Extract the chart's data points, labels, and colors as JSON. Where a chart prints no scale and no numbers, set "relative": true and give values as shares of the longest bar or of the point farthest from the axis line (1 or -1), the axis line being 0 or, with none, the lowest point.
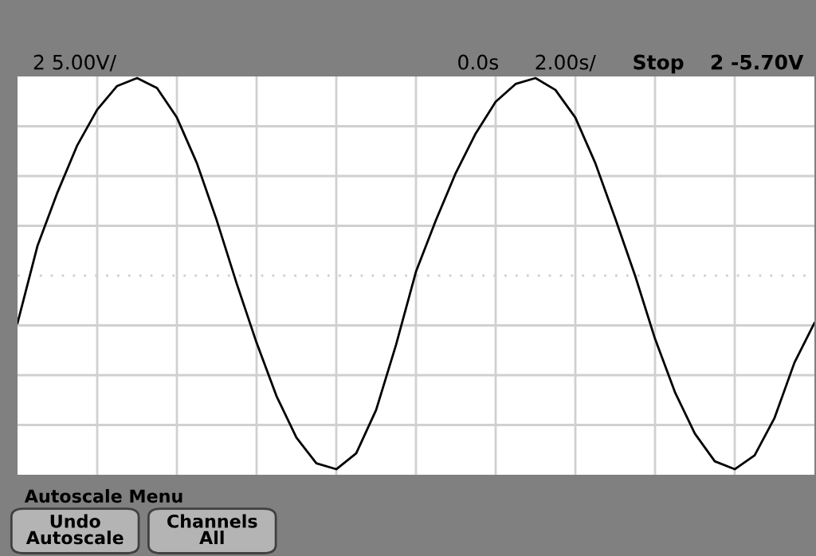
{
  "chart_data": {
    "type": "line",
    "relative": true,
    "grid": true,
    "marker": "none",
    "line_style": "solid",
    "categories": [
      null,
      null,
      null,
      null,
      null,
      null,
      null,
      null,
      null,
      null,
      null,
      null,
      null,
      null,
      null,
      null,
      null,
      null,
      null,
      null,
      null,
      null,
      null,
      null,
      null,
      null,
      null,
      null,
      null,
      null,
      null,
      null,
      null,
      null,
      null,
      null,
      null,
      null,
      null,
      null,
      null
    ],
    "series": [
      {
        "color": "#000000",
        "values": [
          -0.24,
          0.15,
          0.42,
          0.66,
          0.84,
          0.96,
          1.0,
          0.95,
          0.8,
          0.57,
          0.28,
          -0.04,
          -0.34,
          -0.61,
          -0.82,
          -0.95,
          -0.98,
          -0.9,
          -0.68,
          -0.35,
          0.02,
          0.28,
          0.52,
          0.72,
          0.88,
          0.97,
          1.0,
          0.94,
          0.8,
          0.57,
          0.29,
          0.0,
          -0.32,
          -0.59,
          -0.8,
          -0.94,
          -0.98,
          -0.91,
          -0.72,
          -0.44,
          -0.24
        ]
      }
    ],
    "ref_lines": [
      {
        "axis": "y",
        "value": 0,
        "color": "#d0d0d0",
        "line_style": "dotted"
      }
    ],
    "annotations": [
      "2 5.00V/",
      "0.0s",
      "2.00s/",
      "Stop",
      "2 -5.70V",
      "Autoscale Menu",
      "Undo\nAutoscale",
      "Channels\nAll"
    ]
  }
}
